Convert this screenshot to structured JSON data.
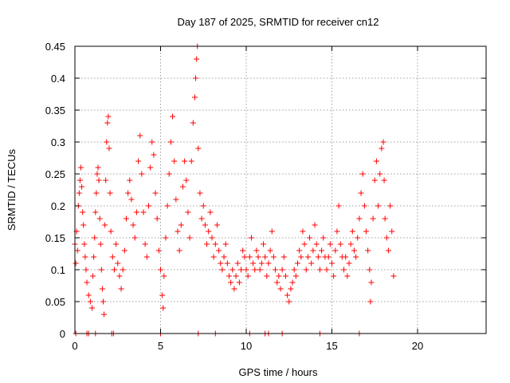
{
  "chart_data": {
    "type": "scatter",
    "title": "Day 187 of 2025, SRMTID for receiver cn12",
    "xlabel": "GPS time / hours",
    "ylabel": "SRMTID / TECUs",
    "xlim": [
      0,
      24
    ],
    "ylim": [
      0,
      0.45
    ],
    "xticks": [
      0,
      5,
      10,
      15,
      20
    ],
    "yticks": [
      0,
      0.05,
      0.1,
      0.15,
      0.2,
      0.25,
      0.3,
      0.35,
      0.4,
      0.45
    ],
    "xtick_labels": [
      "0",
      "5",
      "10",
      "15",
      "20"
    ],
    "ytick_labels": [
      "0",
      "0.05",
      "0.1",
      "0.15",
      "0.2",
      "0.25",
      "0.3",
      "0.35",
      "0.4",
      "0.45"
    ],
    "grid": true,
    "marker": "+",
    "color": "#ff0000",
    "series": [
      {
        "name": "SRMTID",
        "points": [
          [
            0.0,
            0.14
          ],
          [
            0.05,
            0.11
          ],
          [
            0.1,
            0.16
          ],
          [
            0.15,
            0.13
          ],
          [
            0.2,
            0.2
          ],
          [
            0.25,
            0.22
          ],
          [
            0.3,
            0.24
          ],
          [
            0.35,
            0.26
          ],
          [
            0.4,
            0.23
          ],
          [
            0.45,
            0.19
          ],
          [
            0.5,
            0.17
          ],
          [
            0.55,
            0.14
          ],
          [
            0.6,
            0.12
          ],
          [
            0.65,
            0.1
          ],
          [
            0.7,
            0.08
          ],
          [
            0.8,
            0.06
          ],
          [
            0.9,
            0.05
          ],
          [
            1.0,
            0.04
          ],
          [
            1.05,
            0.09
          ],
          [
            1.1,
            0.12
          ],
          [
            1.15,
            0.15
          ],
          [
            1.2,
            0.19
          ],
          [
            1.25,
            0.22
          ],
          [
            1.3,
            0.25
          ],
          [
            1.35,
            0.26
          ],
          [
            1.4,
            0.24
          ],
          [
            1.45,
            0.18
          ],
          [
            1.5,
            0.14
          ],
          [
            1.55,
            0.1
          ],
          [
            1.6,
            0.07
          ],
          [
            1.65,
            0.05
          ],
          [
            1.7,
            0.03
          ],
          [
            1.75,
            0.17
          ],
          [
            1.8,
            0.24
          ],
          [
            1.85,
            0.3
          ],
          [
            1.9,
            0.33
          ],
          [
            1.95,
            0.34
          ],
          [
            2.0,
            0.29
          ],
          [
            2.05,
            0.22
          ],
          [
            2.1,
            0.16
          ],
          [
            2.2,
            0.12
          ],
          [
            2.3,
            0.1
          ],
          [
            2.4,
            0.14
          ],
          [
            2.5,
            0.11
          ],
          [
            2.6,
            0.09
          ],
          [
            2.7,
            0.07
          ],
          [
            2.8,
            0.1
          ],
          [
            2.9,
            0.13
          ],
          [
            3.0,
            0.18
          ],
          [
            3.1,
            0.22
          ],
          [
            3.2,
            0.24
          ],
          [
            3.3,
            0.21
          ],
          [
            3.4,
            0.17
          ],
          [
            3.5,
            0.15
          ],
          [
            3.6,
            0.19
          ],
          [
            3.7,
            0.27
          ],
          [
            3.8,
            0.31
          ],
          [
            3.9,
            0.25
          ],
          [
            4.0,
            0.19
          ],
          [
            4.1,
            0.14
          ],
          [
            4.2,
            0.12
          ],
          [
            4.3,
            0.2
          ],
          [
            4.4,
            0.26
          ],
          [
            4.5,
            0.3
          ],
          [
            4.6,
            0.28
          ],
          [
            4.7,
            0.22
          ],
          [
            4.8,
            0.18
          ],
          [
            4.9,
            0.13
          ],
          [
            5.0,
            0.1
          ],
          [
            5.1,
            0.06
          ],
          [
            5.15,
            0.04
          ],
          [
            5.2,
            0.09
          ],
          [
            5.3,
            0.15
          ],
          [
            5.4,
            0.2
          ],
          [
            5.5,
            0.25
          ],
          [
            5.6,
            0.3
          ],
          [
            5.7,
            0.34
          ],
          [
            5.8,
            0.27
          ],
          [
            5.9,
            0.21
          ],
          [
            6.0,
            0.16
          ],
          [
            6.1,
            0.13
          ],
          [
            6.2,
            0.17
          ],
          [
            6.3,
            0.23
          ],
          [
            6.4,
            0.27
          ],
          [
            6.5,
            0.24
          ],
          [
            6.6,
            0.19
          ],
          [
            6.7,
            0.15
          ],
          [
            6.8,
            0.27
          ],
          [
            6.9,
            0.33
          ],
          [
            7.0,
            0.37
          ],
          [
            7.05,
            0.4
          ],
          [
            7.1,
            0.43
          ],
          [
            7.15,
            0.45
          ],
          [
            7.2,
            0.29
          ],
          [
            7.3,
            0.22
          ],
          [
            7.4,
            0.18
          ],
          [
            7.5,
            0.2
          ],
          [
            7.6,
            0.17
          ],
          [
            7.7,
            0.14
          ],
          [
            7.8,
            0.16
          ],
          [
            7.9,
            0.19
          ],
          [
            8.0,
            0.15
          ],
          [
            8.1,
            0.12
          ],
          [
            8.2,
            0.14
          ],
          [
            8.3,
            0.17
          ],
          [
            8.4,
            0.13
          ],
          [
            8.5,
            0.11
          ],
          [
            8.6,
            0.1
          ],
          [
            8.7,
            0.12
          ],
          [
            8.8,
            0.14
          ],
          [
            8.9,
            0.11
          ],
          [
            9.0,
            0.09
          ],
          [
            9.1,
            0.08
          ],
          [
            9.2,
            0.1
          ],
          [
            9.3,
            0.07
          ],
          [
            9.4,
            0.09
          ],
          [
            9.5,
            0.11
          ],
          [
            9.6,
            0.08
          ],
          [
            9.7,
            0.1
          ],
          [
            9.8,
            0.13
          ],
          [
            9.9,
            0.12
          ],
          [
            10.0,
            0.1
          ],
          [
            10.1,
            0.09
          ],
          [
            10.2,
            0.12
          ],
          [
            10.3,
            0.15
          ],
          [
            10.4,
            0.11
          ],
          [
            10.5,
            0.1
          ],
          [
            10.6,
            0.13
          ],
          [
            10.7,
            0.12
          ],
          [
            10.8,
            0.1
          ],
          [
            10.9,
            0.11
          ],
          [
            11.0,
            0.14
          ],
          [
            11.1,
            0.12
          ],
          [
            11.2,
            0.09
          ],
          [
            11.3,
            0.11
          ],
          [
            11.4,
            0.13
          ],
          [
            11.5,
            0.16
          ],
          [
            11.6,
            0.12
          ],
          [
            11.7,
            0.1
          ],
          [
            11.8,
            0.08
          ],
          [
            11.9,
            0.09
          ],
          [
            12.0,
            0.07
          ],
          [
            12.1,
            0.1
          ],
          [
            12.2,
            0.12
          ],
          [
            12.3,
            0.09
          ],
          [
            12.4,
            0.06
          ],
          [
            12.5,
            0.05
          ],
          [
            12.6,
            0.07
          ],
          [
            12.7,
            0.08
          ],
          [
            12.8,
            0.1
          ],
          [
            12.9,
            0.09
          ],
          [
            13.0,
            0.11
          ],
          [
            13.1,
            0.13
          ],
          [
            13.2,
            0.12
          ],
          [
            13.3,
            0.16
          ],
          [
            13.4,
            0.14
          ],
          [
            13.5,
            0.1
          ],
          [
            13.6,
            0.12
          ],
          [
            13.7,
            0.15
          ],
          [
            13.8,
            0.11
          ],
          [
            13.9,
            0.13
          ],
          [
            14.0,
            0.17
          ],
          [
            14.1,
            0.14
          ],
          [
            14.2,
            0.12
          ],
          [
            14.3,
            0.1
          ],
          [
            14.4,
            0.13
          ],
          [
            14.5,
            0.15
          ],
          [
            14.6,
            0.12
          ],
          [
            14.7,
            0.1
          ],
          [
            14.8,
            0.12
          ],
          [
            14.9,
            0.14
          ],
          [
            15.0,
            0.11
          ],
          [
            15.1,
            0.09
          ],
          [
            15.2,
            0.13
          ],
          [
            15.3,
            0.16
          ],
          [
            15.4,
            0.2
          ],
          [
            15.5,
            0.14
          ],
          [
            15.6,
            0.12
          ],
          [
            15.7,
            0.1
          ],
          [
            15.8,
            0.12
          ],
          [
            15.9,
            0.09
          ],
          [
            16.0,
            0.11
          ],
          [
            16.1,
            0.14
          ],
          [
            16.2,
            0.16
          ],
          [
            16.3,
            0.13
          ],
          [
            16.4,
            0.12
          ],
          [
            16.5,
            0.15
          ],
          [
            16.6,
            0.18
          ],
          [
            16.7,
            0.22
          ],
          [
            16.8,
            0.25
          ],
          [
            16.9,
            0.2
          ],
          [
            17.0,
            0.16
          ],
          [
            17.1,
            0.13
          ],
          [
            17.2,
            0.1
          ],
          [
            17.25,
            0.05
          ],
          [
            17.3,
            0.08
          ],
          [
            17.4,
            0.18
          ],
          [
            17.5,
            0.24
          ],
          [
            17.6,
            0.27
          ],
          [
            17.7,
            0.2
          ],
          [
            17.8,
            0.25
          ],
          [
            17.9,
            0.29
          ],
          [
            18.0,
            0.3
          ],
          [
            18.05,
            0.24
          ],
          [
            18.1,
            0.18
          ],
          [
            18.2,
            0.15
          ],
          [
            18.3,
            0.13
          ],
          [
            18.4,
            0.2
          ],
          [
            18.5,
            0.16
          ],
          [
            18.6,
            0.09
          ],
          [
            0.05,
            0.0
          ],
          [
            0.7,
            0.0
          ],
          [
            0.8,
            0.0
          ],
          [
            1.2,
            0.0
          ],
          [
            2.15,
            0.0
          ],
          [
            2.25,
            0.0
          ],
          [
            5.0,
            0.0
          ],
          [
            7.2,
            0.0
          ],
          [
            8.2,
            0.0
          ],
          [
            10.2,
            0.0
          ],
          [
            11.1,
            0.0
          ],
          [
            11.3,
            0.0
          ],
          [
            12.1,
            0.0
          ],
          [
            14.3,
            0.0
          ],
          [
            16.6,
            0.0
          ]
        ]
      }
    ]
  }
}
